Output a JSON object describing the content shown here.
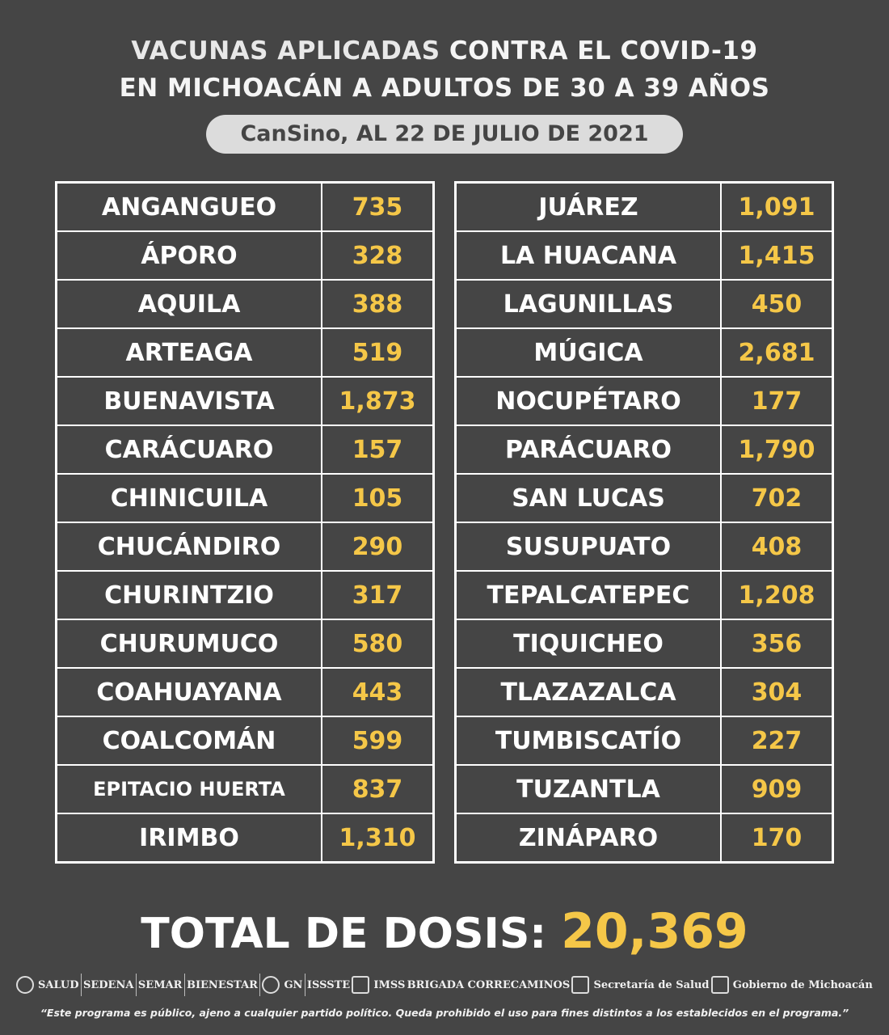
{
  "header": {
    "line1_light": "VACUNAS APLICADAS",
    "line1_bold": "CONTRA EL COVID-19",
    "line2": "EN MICHOACÁN A ADULTOS DE 30 A 39 AÑOS",
    "subtitle": "CanSino, AL 22 DE JULIO DE 2021"
  },
  "colors": {
    "background": "#454545",
    "accent": "#f5c748",
    "pill": "#dcdcdc"
  },
  "left_table": [
    {
      "name": "ANGANGUEO",
      "value": "735"
    },
    {
      "name": "ÁPORO",
      "value": "328"
    },
    {
      "name": "AQUILA",
      "value": "388"
    },
    {
      "name": "ARTEAGA",
      "value": "519"
    },
    {
      "name": "BUENAVISTA",
      "value": "1,873"
    },
    {
      "name": "CARÁCUARO",
      "value": "157"
    },
    {
      "name": "CHINICUILA",
      "value": "105"
    },
    {
      "name": "CHUCÁNDIRO",
      "value": "290"
    },
    {
      "name": "CHURINTZIO",
      "value": "317"
    },
    {
      "name": "CHURUMUCO",
      "value": "580"
    },
    {
      "name": "COAHUAYANA",
      "value": "443"
    },
    {
      "name": "COALCOMÁN",
      "value": "599"
    },
    {
      "name": "EPITACIO HUERTA",
      "value": "837"
    },
    {
      "name": "IRIMBO",
      "value": "1,310"
    }
  ],
  "right_table": [
    {
      "name": "JUÁREZ",
      "value": "1,091"
    },
    {
      "name": "LA HUACANA",
      "value": "1,415"
    },
    {
      "name": "LAGUNILLAS",
      "value": "450"
    },
    {
      "name": "MÚGICA",
      "value": "2,681"
    },
    {
      "name": "NOCUPÉTARO",
      "value": "177"
    },
    {
      "name": "PARÁCUARO",
      "value": "1,790"
    },
    {
      "name": "SAN LUCAS",
      "value": "702"
    },
    {
      "name": "SUSUPUATO",
      "value": "408"
    },
    {
      "name": "TEPALCATEPEC",
      "value": "1,208"
    },
    {
      "name": "TIQUICHEO",
      "value": "356"
    },
    {
      "name": "TLAZAZALCA",
      "value": "304"
    },
    {
      "name": "TUMBISCATÍO",
      "value": "227"
    },
    {
      "name": "TUZANTLA",
      "value": "909"
    },
    {
      "name": "ZINÁPARO",
      "value": "170"
    }
  ],
  "total": {
    "label": "TOTAL DE DOSIS:",
    "value": "20,369"
  },
  "logos": [
    "SALUD",
    "SEDENA",
    "SEMAR",
    "BIENESTAR",
    "GN",
    "ISSSTE",
    "IMSS",
    "BRIGADA CORRECAMINOS",
    "Secretaría de Salud",
    "Gobierno de Michoacán"
  ],
  "disclaimer": "“Este programa es público, ajeno a cualquier partido político. Queda prohibido el uso para fines distintos a los establecidos en el programa.”"
}
